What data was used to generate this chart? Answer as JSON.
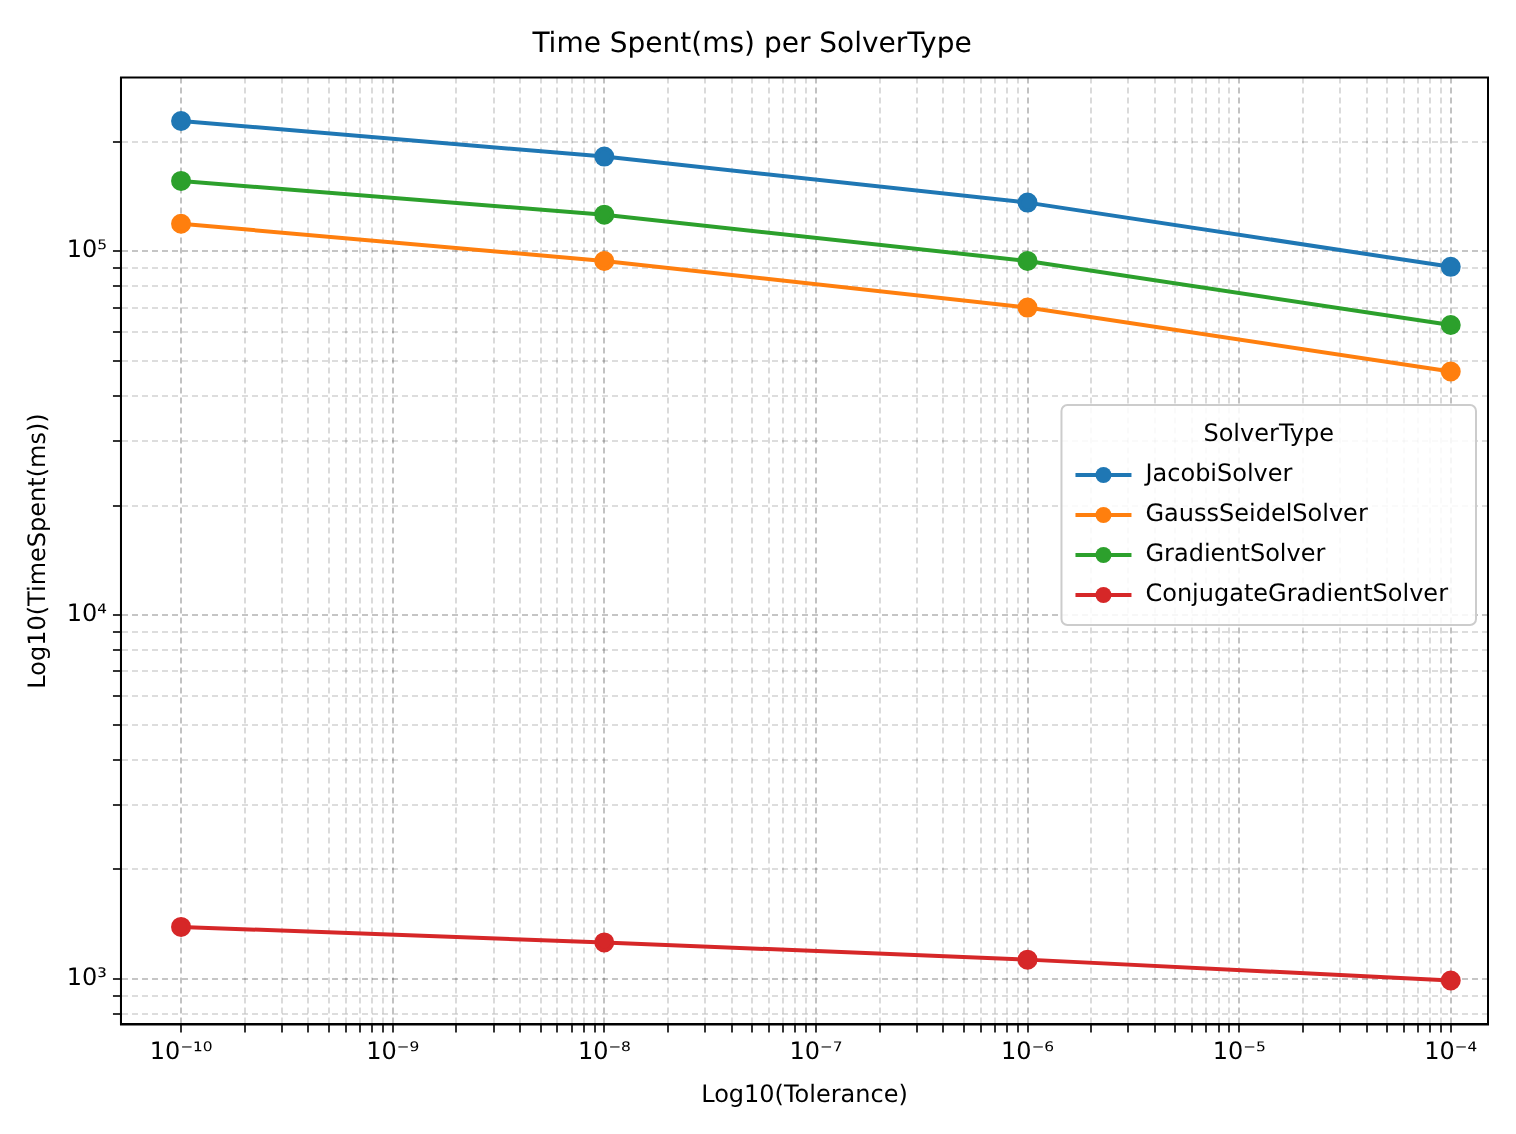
{
  "chart_data": {
    "type": "line",
    "title": "Time Spent(ms) per SolverType",
    "xlabel": "Log10(Tolerance)",
    "ylabel": "Log10(TimeSpent(ms))",
    "legend_title": "SolverType",
    "legend": "center right",
    "grid": true,
    "log": "xy",
    "marker": "circle",
    "line_style": "solid",
    "x": [
      1e-10,
      1e-08,
      1e-06,
      0.0001
    ],
    "xlim": [
      5.2e-11,
      0.00015
    ],
    "xticks": [
      {
        "value": 1e-10,
        "label": "10⁻¹⁰"
      },
      {
        "value": 2e-10,
        "label": null
      },
      {
        "value": 3e-10,
        "label": null
      },
      {
        "value": 4e-10,
        "label": null
      },
      {
        "value": 5e-10,
        "label": null
      },
      {
        "value": 6e-10,
        "label": null
      },
      {
        "value": 7e-10,
        "label": null
      },
      {
        "value": 8e-10,
        "label": null
      },
      {
        "value": 9e-10,
        "label": null
      },
      {
        "value": 1e-09,
        "label": "10⁻⁹"
      },
      {
        "value": 2e-09,
        "label": null
      },
      {
        "value": 3e-09,
        "label": null
      },
      {
        "value": 4e-09,
        "label": null
      },
      {
        "value": 5e-09,
        "label": null
      },
      {
        "value": 6e-09,
        "label": null
      },
      {
        "value": 7e-09,
        "label": null
      },
      {
        "value": 8e-09,
        "label": null
      },
      {
        "value": 9e-09,
        "label": null
      },
      {
        "value": 1e-08,
        "label": "10⁻⁸"
      },
      {
        "value": 2e-08,
        "label": null
      },
      {
        "value": 3e-08,
        "label": null
      },
      {
        "value": 4e-08,
        "label": null
      },
      {
        "value": 5e-08,
        "label": null
      },
      {
        "value": 6e-08,
        "label": null
      },
      {
        "value": 7e-08,
        "label": null
      },
      {
        "value": 8e-08,
        "label": null
      },
      {
        "value": 9e-08,
        "label": null
      },
      {
        "value": 1e-07,
        "label": "10⁻⁷"
      },
      {
        "value": 2e-07,
        "label": null
      },
      {
        "value": 3e-07,
        "label": null
      },
      {
        "value": 4e-07,
        "label": null
      },
      {
        "value": 5e-07,
        "label": null
      },
      {
        "value": 6e-07,
        "label": null
      },
      {
        "value": 7e-07,
        "label": null
      },
      {
        "value": 8e-07,
        "label": null
      },
      {
        "value": 9e-07,
        "label": null
      },
      {
        "value": 1e-06,
        "label": "10⁻⁶"
      },
      {
        "value": 2e-06,
        "label": null
      },
      {
        "value": 3e-06,
        "label": null
      },
      {
        "value": 4e-06,
        "label": null
      },
      {
        "value": 5e-06,
        "label": null
      },
      {
        "value": 6e-06,
        "label": null
      },
      {
        "value": 7e-06,
        "label": null
      },
      {
        "value": 8e-06,
        "label": null
      },
      {
        "value": 9e-06,
        "label": null
      },
      {
        "value": 1e-05,
        "label": "10⁻⁵"
      },
      {
        "value": 2e-05,
        "label": null
      },
      {
        "value": 3e-05,
        "label": null
      },
      {
        "value": 4e-05,
        "label": null
      },
      {
        "value": 5e-05,
        "label": null
      },
      {
        "value": 6e-05,
        "label": null
      },
      {
        "value": 7e-05,
        "label": null
      },
      {
        "value": 8e-05,
        "label": null
      },
      {
        "value": 9e-05,
        "label": null
      },
      {
        "value": 0.0001,
        "label": "10⁻⁴"
      }
    ],
    "ylim": [
      750,
      300000
    ],
    "yticks": [
      {
        "value": 800,
        "label": null
      },
      {
        "value": 900,
        "label": null
      },
      {
        "value": 1000,
        "label": "10³"
      },
      {
        "value": 2000,
        "label": null
      },
      {
        "value": 3000,
        "label": null
      },
      {
        "value": 4000,
        "label": null
      },
      {
        "value": 5000,
        "label": null
      },
      {
        "value": 6000,
        "label": null
      },
      {
        "value": 7000,
        "label": null
      },
      {
        "value": 8000,
        "label": null
      },
      {
        "value": 9000,
        "label": null
      },
      {
        "value": 10000,
        "label": "10⁴"
      },
      {
        "value": 20000,
        "label": null
      },
      {
        "value": 30000,
        "label": null
      },
      {
        "value": 40000,
        "label": null
      },
      {
        "value": 50000,
        "label": null
      },
      {
        "value": 60000,
        "label": null
      },
      {
        "value": 70000,
        "label": null
      },
      {
        "value": 80000,
        "label": null
      },
      {
        "value": 90000,
        "label": null
      },
      {
        "value": 100000,
        "label": "10⁵"
      },
      {
        "value": 200000,
        "label": null
      }
    ],
    "series": [
      {
        "name": "JacobiSolver",
        "color": "#1f77b4",
        "values": [
          228000,
          182000,
          136000,
          90600
        ]
      },
      {
        "name": "GaussSeidelSolver",
        "color": "#ff7f0e",
        "values": [
          119000,
          94000,
          70000,
          46700
        ]
      },
      {
        "name": "GradientSolver",
        "color": "#2ca02c",
        "values": [
          156000,
          126000,
          94000,
          62700
        ]
      },
      {
        "name": "ConjugateGradientSolver",
        "color": "#d62728",
        "values": [
          1390,
          1260,
          1130,
          990
        ]
      }
    ]
  }
}
